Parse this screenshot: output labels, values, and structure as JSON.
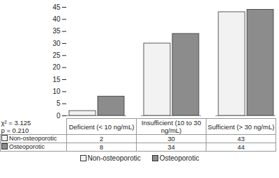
{
  "chart_data": {
    "type": "bar",
    "categories": [
      "Deficient (< 10 ng/mL)",
      "Insufficient (10 to 30 ng/mL)",
      "Sufficient (> 30 ng/mL)"
    ],
    "series": [
      {
        "name": "Non-osteoporotic",
        "color": "#f2f2f2",
        "values": [
          2,
          30,
          43
        ]
      },
      {
        "name": "Osteoporotic",
        "color": "#8c8c8c",
        "values": [
          8,
          34,
          44
        ]
      }
    ],
    "ylim": [
      0,
      45
    ],
    "yticks": [
      0,
      5,
      10,
      15,
      20,
      25,
      30,
      35,
      40,
      45
    ],
    "grid": false,
    "legend": "bottom",
    "data_labels": true,
    "annotations": [
      "χ² = 3.125",
      "p = 0.210"
    ]
  }
}
